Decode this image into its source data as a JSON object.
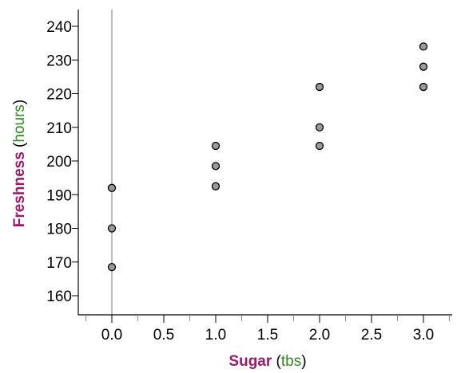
{
  "chart_data": {
    "type": "scatter",
    "title": "",
    "xlabel": {
      "name": "Sugar",
      "unit": "tbs"
    },
    "ylabel": {
      "name": "Freshness",
      "unit": "hours"
    },
    "xlim": [
      -0.25,
      3.3
    ],
    "ylim": [
      153,
      245
    ],
    "x_ticks": [
      "0.0",
      "0.5",
      "1.0",
      "1.5",
      "2.0",
      "2.5",
      "3.0"
    ],
    "y_ticks": [
      "160",
      "170",
      "180",
      "190",
      "200",
      "210",
      "220",
      "230",
      "240"
    ],
    "grid": false,
    "colors": {
      "label_name": "#9b1a6e",
      "label_unit": "#2e8b1e",
      "marker_fill": "#9a9a9a",
      "marker_edge": "#000000",
      "zero_line": "#a6a6a6"
    },
    "points": [
      {
        "x": 0,
        "y": 192
      },
      {
        "x": 0,
        "y": 180
      },
      {
        "x": 0,
        "y": 168.5
      },
      {
        "x": 1,
        "y": 204.5
      },
      {
        "x": 1,
        "y": 198.5
      },
      {
        "x": 1,
        "y": 192.5
      },
      {
        "x": 2,
        "y": 222
      },
      {
        "x": 2,
        "y": 210
      },
      {
        "x": 2,
        "y": 204.5
      },
      {
        "x": 3,
        "y": 234
      },
      {
        "x": 3,
        "y": 228
      },
      {
        "x": 3,
        "y": 222
      }
    ]
  }
}
